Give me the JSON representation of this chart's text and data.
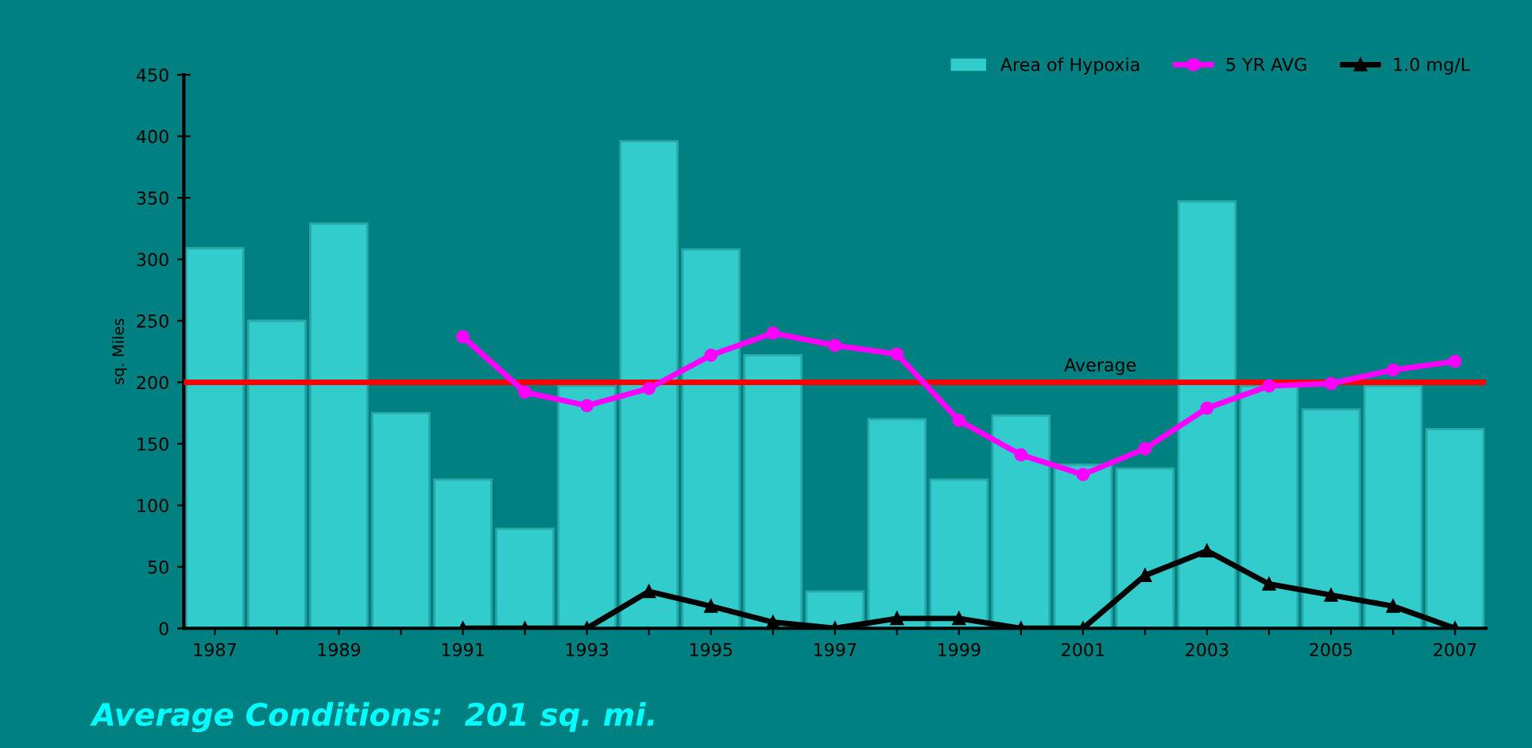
{
  "chart_data": {
    "type": "bar",
    "ylabel": "sq. Miles",
    "categories": [
      "1987",
      null,
      "1989",
      null,
      "1991",
      null,
      "1993",
      null,
      "1995",
      null,
      "1997",
      null,
      "1999",
      null,
      "2001",
      null,
      "2003",
      null,
      "2005",
      null,
      "2007"
    ],
    "series": [
      {
        "name": "Area of Hypoxia",
        "color": "#33cccc",
        "values": [
          309,
          250,
          329,
          175,
          121,
          81,
          197,
          396,
          308,
          222,
          30,
          170,
          121,
          173,
          133,
          130,
          347,
          197,
          178,
          197,
          162
        ]
      },
      {
        "name": "5 YR AVG",
        "type": "line",
        "color": "#ff00ff",
        "marker": "circle",
        "values": [
          null,
          null,
          null,
          null,
          237,
          192,
          181,
          195,
          222,
          240,
          230,
          223,
          169,
          141,
          125,
          146,
          179,
          197,
          199,
          210,
          217
        ]
      },
      {
        "name": "1.0 mg/L",
        "type": "line",
        "color": "#000000",
        "marker": "triangle",
        "values": [
          null,
          null,
          null,
          null,
          0,
          0,
          0,
          30,
          18,
          5,
          0,
          8,
          8,
          0,
          0,
          43,
          63,
          36,
          27,
          18,
          0
        ]
      }
    ],
    "ylim": [
      0,
      450
    ],
    "yticks": [
      0,
      50,
      100,
      150,
      200,
      250,
      300,
      350,
      400,
      450
    ],
    "ref_lines": [
      {
        "axis": "y",
        "value": 200,
        "label": "Average",
        "color": "#ff0000"
      }
    ],
    "annotations": [
      "Average Conditions:  201 sq. mi."
    ],
    "legend": "top right",
    "grid": false
  }
}
